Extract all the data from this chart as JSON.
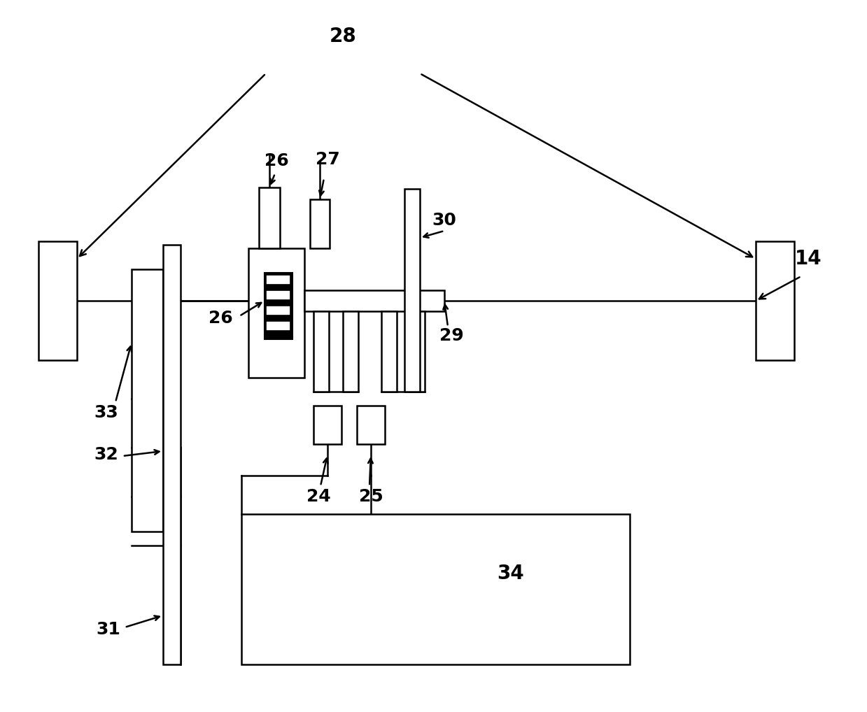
{
  "bg_color": "#ffffff",
  "fig_width": 12.39,
  "fig_height": 10.18,
  "dpi": 100,
  "lw": 1.8
}
